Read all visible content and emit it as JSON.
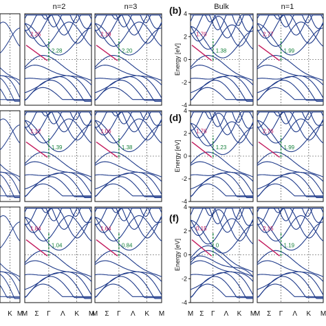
{
  "figure": {
    "colors": {
      "band": "#1e3a8a",
      "indirect_arrow": "#c2185b",
      "direct_arrow": "#16803c",
      "frame": "#111111",
      "grid": "#333333"
    },
    "column_headers": [
      "n=2",
      "n=3",
      "Bulk",
      "n=1"
    ],
    "panel_tags": [
      "(b)",
      "(d)",
      "(f)"
    ],
    "ylabel": "Energy [eV]",
    "yticks": [
      "4",
      "2",
      "0",
      "-2",
      "-4"
    ],
    "left_xticks": [
      "K",
      "M"
    ],
    "mid_xticks": [
      "M",
      "Σ",
      "Γ",
      "Λ",
      "K",
      "M"
    ],
    "right_xticks": [
      "M",
      "Σ",
      "Γ",
      "Λ",
      "K",
      "M"
    ]
  },
  "chart_data": [
    {
      "type": "line",
      "panel": "row1-n2",
      "title": "n=2",
      "indirect_gap_label": "2.25",
      "direct_gap_label": "2.28",
      "ylim": [
        -4,
        4
      ]
    },
    {
      "type": "line",
      "panel": "row1-n3",
      "title": "n=3",
      "indirect_gap_label": "2.19",
      "direct_gap_label": "2.20",
      "ylim": [
        -4,
        4
      ]
    },
    {
      "type": "line",
      "panel": "b-bulk",
      "title": "Bulk",
      "tag": "(b)",
      "indirect_gap_label": "1.70",
      "direct_gap_label": "1.38",
      "ylim": [
        -4,
        4
      ]
    },
    {
      "type": "line",
      "panel": "b-n1",
      "title": "n=1",
      "indirect_gap_label": "2.77",
      "direct_gap_label": "1.99",
      "ylim": [
        -4,
        4
      ]
    },
    {
      "type": "line",
      "panel": "row2-n2",
      "indirect_gap_label": "1.12",
      "direct_gap_label": "1.39",
      "ylim": [
        -4,
        4
      ]
    },
    {
      "type": "line",
      "panel": "row2-n3",
      "indirect_gap_label": "1.06",
      "direct_gap_label": "1.38",
      "ylim": [
        -4,
        4
      ]
    },
    {
      "type": "line",
      "panel": "d-bulk",
      "tag": "(d)",
      "indirect_gap_label": "1.76",
      "direct_gap_label": "1.23",
      "ylim": [
        -4,
        4
      ]
    },
    {
      "type": "line",
      "panel": "d-n1",
      "indirect_gap_label": "2.76",
      "direct_gap_label": "1.99",
      "ylim": [
        -4,
        4
      ]
    },
    {
      "type": "line",
      "panel": "row3-n2",
      "indirect_gap_label": "1.84",
      "direct_gap_label": "1.04",
      "ylim": [
        -4,
        4
      ]
    },
    {
      "type": "line",
      "panel": "row3-n3",
      "indirect_gap_label": "1.64",
      "direct_gap_label": "0.84",
      "ylim": [
        -4,
        4
      ]
    },
    {
      "type": "line",
      "panel": "f-bulk",
      "tag": "(f)",
      "indirect_gap_label": "0.15",
      "direct_gap_label": "0",
      "ylim": [
        -4,
        4
      ]
    },
    {
      "type": "line",
      "panel": "f-n1",
      "indirect_gap_label": "2.15",
      "direct_gap_label": "1.19",
      "ylim": [
        -4,
        4
      ]
    }
  ]
}
